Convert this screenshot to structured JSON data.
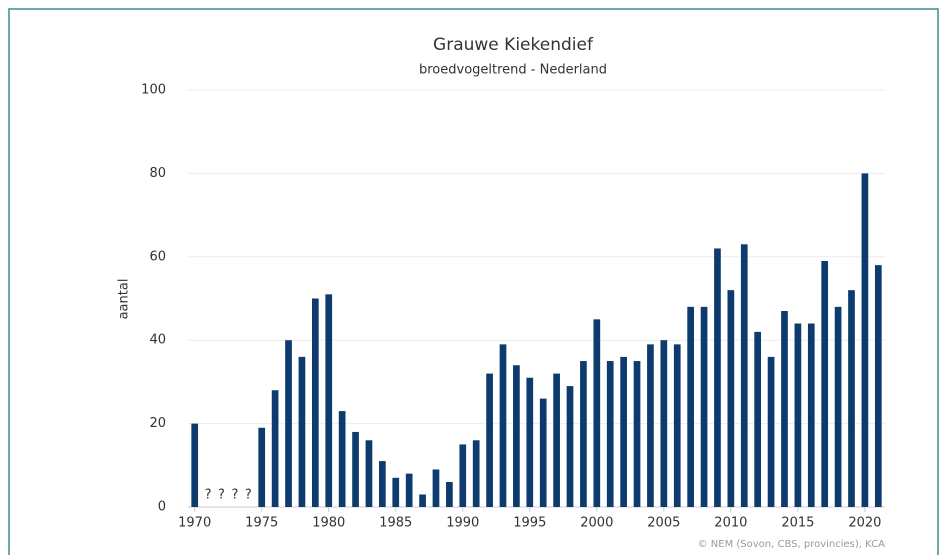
{
  "chart_data": {
    "type": "bar",
    "title": "Grauwe Kiekendief",
    "subtitle": "broedvogeltrend - Nederland",
    "y_label": "aantal",
    "credit": "© NEM (Sovon, CBS, provincies), KCA",
    "color": "#0d3b6e",
    "x": [
      1970,
      1971,
      1972,
      1973,
      1974,
      1975,
      1976,
      1977,
      1978,
      1979,
      1980,
      1981,
      1982,
      1983,
      1984,
      1985,
      1986,
      1987,
      1988,
      1989,
      1990,
      1991,
      1992,
      1993,
      1994,
      1995,
      1996,
      1997,
      1998,
      1999,
      2000,
      2001,
      2002,
      2003,
      2004,
      2005,
      2006,
      2007,
      2008,
      2009,
      2010,
      2011,
      2012,
      2013,
      2014,
      2015,
      2016,
      2017,
      2018,
      2019,
      2020,
      2021
    ],
    "values": [
      20,
      null,
      null,
      null,
      null,
      19,
      28,
      40,
      36,
      50,
      51,
      23,
      18,
      16,
      11,
      7,
      8,
      3,
      9,
      6,
      15,
      16,
      32,
      39,
      34,
      31,
      26,
      32,
      29,
      35,
      45,
      35,
      36,
      35,
      39,
      40,
      39,
      48,
      48,
      62,
      52,
      63,
      42,
      36,
      47,
      44,
      44,
      59,
      48,
      52,
      80,
      58
    ],
    "value_labels": [
      null,
      "?",
      "?",
      "?",
      "?",
      null,
      null,
      null,
      null,
      null,
      null,
      null,
      null,
      null,
      null,
      null,
      null,
      null,
      null,
      null,
      null,
      null,
      null,
      null,
      null,
      null,
      null,
      null,
      null,
      null,
      null,
      null,
      null,
      null,
      null,
      null,
      null,
      null,
      null,
      null,
      null,
      null,
      null,
      null,
      null,
      null,
      null,
      null,
      null,
      null,
      null,
      null
    ],
    "xlim": [
      1969.5,
      2021.5
    ],
    "xticks": [
      1970,
      1975,
      1980,
      1985,
      1990,
      1995,
      2000,
      2005,
      2010,
      2015,
      2020
    ],
    "ylim": [
      0,
      100
    ],
    "yticks": [
      0,
      20,
      40,
      60,
      80,
      100
    ],
    "grid": true
  }
}
